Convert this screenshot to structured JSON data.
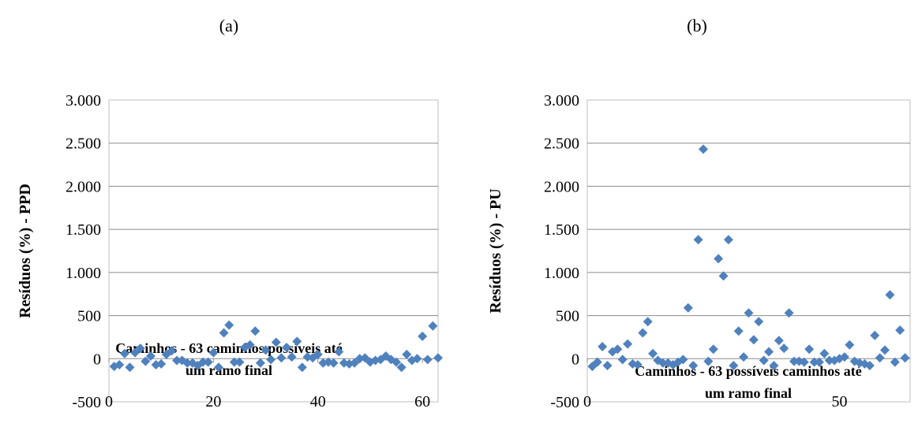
{
  "chart_data": [
    {
      "type": "scatter",
      "title": "(a)",
      "ylabel": "Resíduos (%) - PPD",
      "xlabel_lines": [
        "Caminhos - 63 caminhos possíveis até",
        "um ramo final"
      ],
      "xlim": [
        0,
        63
      ],
      "ylim": [
        -500,
        3000
      ],
      "xticks": [
        0,
        20,
        40,
        60
      ],
      "xtick_labels": [
        "0",
        "20",
        "40",
        "60"
      ],
      "yticks": [
        -500,
        0,
        500,
        1000,
        1500,
        2000,
        2500,
        3000
      ],
      "ytick_labels": [
        "-500",
        "0",
        "500",
        "1.000",
        "1.500",
        "2.000",
        "2.500",
        "3.000"
      ],
      "grid": "horizontal",
      "marker_color": "#4F81BD",
      "x": [
        1,
        2,
        3,
        4,
        5,
        6,
        7,
        8,
        9,
        10,
        11,
        12,
        13,
        14,
        15,
        16,
        17,
        18,
        19,
        20,
        21,
        22,
        23,
        24,
        25,
        26,
        27,
        28,
        29,
        30,
        31,
        32,
        33,
        34,
        35,
        36,
        37,
        38,
        39,
        40,
        41,
        42,
        43,
        44,
        45,
        46,
        47,
        48,
        49,
        50,
        51,
        52,
        53,
        54,
        55,
        56,
        57,
        58,
        59,
        60,
        61,
        62,
        63
      ],
      "y": [
        -90,
        -70,
        60,
        -100,
        70,
        120,
        -30,
        30,
        -70,
        -60,
        50,
        90,
        -20,
        -20,
        -50,
        -50,
        -80,
        -40,
        -40,
        70,
        -100,
        300,
        390,
        -40,
        -40,
        130,
        160,
        320,
        -50,
        100,
        -10,
        190,
        10,
        130,
        20,
        200,
        -100,
        20,
        10,
        50,
        -50,
        -40,
        -50,
        80,
        -50,
        -60,
        -50,
        0,
        10,
        -40,
        -20,
        -10,
        30,
        -10,
        -40,
        -100,
        50,
        -20,
        0,
        260,
        -10,
        380,
        10
      ]
    },
    {
      "type": "scatter",
      "title": "(b)",
      "ylabel": "Resíduos (%) - PU",
      "xlabel_lines": [
        "Caminhos - 63 possíveis caminhos até",
        "um ramo final"
      ],
      "xlim": [
        0,
        64
      ],
      "ylim": [
        -500,
        3000
      ],
      "xticks": [
        0,
        50
      ],
      "xtick_labels": [
        "0",
        "50"
      ],
      "yticks": [
        -500,
        0,
        500,
        1000,
        1500,
        2000,
        2500,
        3000
      ],
      "ytick_labels": [
        "-500",
        "0",
        "500",
        "1.000",
        "1.500",
        "2.000",
        "2.500",
        "3.000"
      ],
      "grid": "horizontal",
      "marker_color": "#4F81BD",
      "x": [
        1,
        2,
        3,
        4,
        5,
        6,
        7,
        8,
        9,
        10,
        11,
        12,
        13,
        14,
        15,
        16,
        17,
        18,
        19,
        20,
        21,
        22,
        23,
        24,
        25,
        26,
        27,
        28,
        29,
        30,
        31,
        32,
        33,
        34,
        35,
        36,
        37,
        38,
        39,
        40,
        41,
        42,
        43,
        44,
        45,
        46,
        47,
        48,
        49,
        50,
        51,
        52,
        53,
        54,
        55,
        56,
        57,
        58,
        59,
        60,
        61,
        62,
        63
      ],
      "y": [
        -90,
        -40,
        140,
        -80,
        80,
        110,
        -10,
        170,
        -60,
        -70,
        300,
        430,
        60,
        -20,
        -50,
        -50,
        -70,
        -40,
        -10,
        590,
        -80,
        1380,
        2430,
        -30,
        110,
        1160,
        960,
        1380,
        -80,
        320,
        20,
        530,
        220,
        430,
        -20,
        80,
        -80,
        210,
        120,
        530,
        -30,
        -30,
        -40,
        110,
        -40,
        -40,
        60,
        -20,
        -20,
        0,
        20,
        160,
        -30,
        -50,
        -60,
        -80,
        270,
        10,
        100,
        740,
        -40,
        330,
        10
      ]
    }
  ]
}
